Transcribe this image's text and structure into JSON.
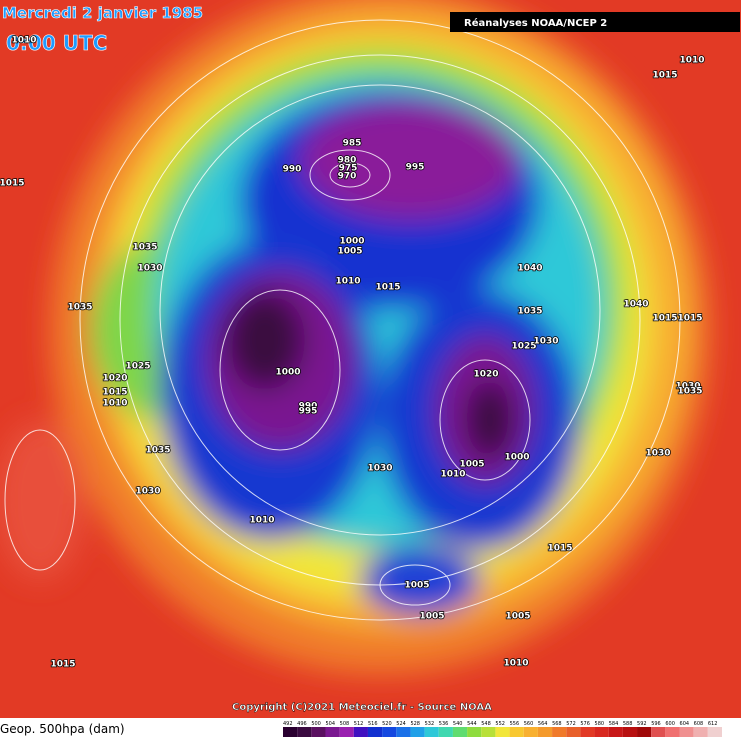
{
  "header": {
    "date": "Mercredi 2 janvier 1985",
    "time": "0:00 UTC",
    "source": "Réanalyses NOAA/NCEP 2"
  },
  "footer": {
    "copyright": "Copyright (C)2021 Meteociel.fr - Source NOAA",
    "legend_title": "Geop. 500hpa (dam)",
    "scale": [
      492,
      496,
      500,
      504,
      508,
      512,
      516,
      520,
      524,
      528,
      532,
      536,
      540,
      544,
      548,
      552,
      556,
      560,
      564,
      568,
      572,
      576,
      580,
      584,
      588,
      592,
      596,
      600,
      604,
      608,
      612
    ]
  },
  "contour_labels": [
    1010,
    1015,
    1010,
    1015,
    985,
    980,
    975,
    970,
    990,
    995,
    1035,
    1030,
    1000,
    1005,
    1040,
    1010,
    1015,
    1035,
    1035,
    1040,
    1015,
    1015,
    1025,
    1020,
    1015,
    1010,
    1025,
    1030,
    1000,
    1020,
    990,
    995,
    1030,
    1035,
    1035,
    1030,
    1010,
    1005,
    1000,
    1030,
    1030,
    1010,
    1015,
    1005,
    1005,
    1005,
    1015,
    1010
  ]
}
